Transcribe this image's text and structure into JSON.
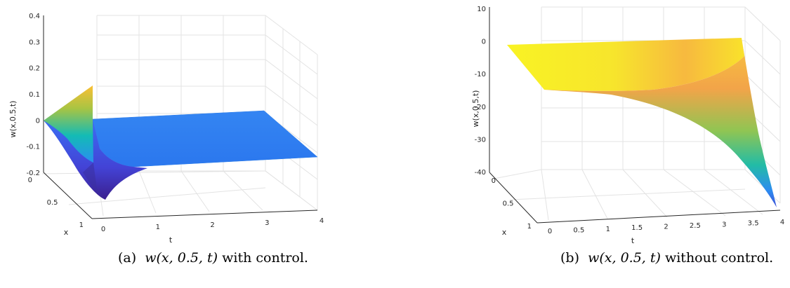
{
  "chart_data": [
    {
      "type": "surface",
      "panel": "(a)",
      "caption_math": "w(x, 0.5, t)",
      "caption_text": "with control.",
      "zlabel": "w(x,0.5,t)",
      "xlabel": "x",
      "tlabel": "t",
      "z_ticks": [
        "0.4",
        "0.3",
        "0.2",
        "0.1",
        "0",
        "-0.1",
        "-0.2"
      ],
      "z_range": [
        -0.2,
        0.4
      ],
      "x_ticks": [
        "0",
        "0.5",
        "1"
      ],
      "x_range": [
        0,
        1
      ],
      "t_ticks": [
        "0",
        "1",
        "2",
        "3",
        "4"
      ],
      "t_range": [
        0,
        4
      ],
      "surface_points": [
        {
          "x": 0,
          "t": 0,
          "w": 0
        },
        {
          "x": 0.5,
          "t": 0,
          "w": 0.15
        },
        {
          "x": 1,
          "t": 0,
          "w": 0.2
        },
        {
          "x": 1,
          "t": 0.15,
          "w": -0.18
        },
        {
          "x": 1,
          "t": 1,
          "w": -0.07
        },
        {
          "x": 1,
          "t": 2,
          "w": -0.06
        },
        {
          "x": 1,
          "t": 4,
          "w": -0.06
        },
        {
          "x": 0,
          "t": 4,
          "w": 0
        },
        {
          "x": 0,
          "t": 1,
          "w": 0
        }
      ]
    },
    {
      "type": "surface",
      "panel": "(b)",
      "caption_math": "w(x, 0.5, t)",
      "caption_text": "without control.",
      "zlabel": "w(x,0.5,t)",
      "xlabel": "x",
      "tlabel": "t",
      "z_ticks": [
        "10",
        "0",
        "-10",
        "-20",
        "-30",
        "-40"
      ],
      "z_range": [
        -40,
        10
      ],
      "x_ticks": [
        "0",
        "0.5",
        "1"
      ],
      "x_range": [
        0,
        1
      ],
      "t_ticks": [
        "0",
        "0.5",
        "1",
        "1.5",
        "2",
        "2.5",
        "3",
        "3.5",
        "4"
      ],
      "t_range": [
        0,
        4
      ],
      "surface_points": [
        {
          "x": 0,
          "t": 0,
          "w": 0
        },
        {
          "x": 0,
          "t": 4,
          "w": 0
        },
        {
          "x": 1,
          "t": 0,
          "w": 0
        },
        {
          "x": 1,
          "t": 0.5,
          "w": -5
        },
        {
          "x": 1,
          "t": 2,
          "w": -6
        },
        {
          "x": 1,
          "t": 3,
          "w": -10
        },
        {
          "x": 1,
          "t": 3.5,
          "w": -22
        },
        {
          "x": 1,
          "t": 4,
          "w": -40
        }
      ]
    }
  ]
}
